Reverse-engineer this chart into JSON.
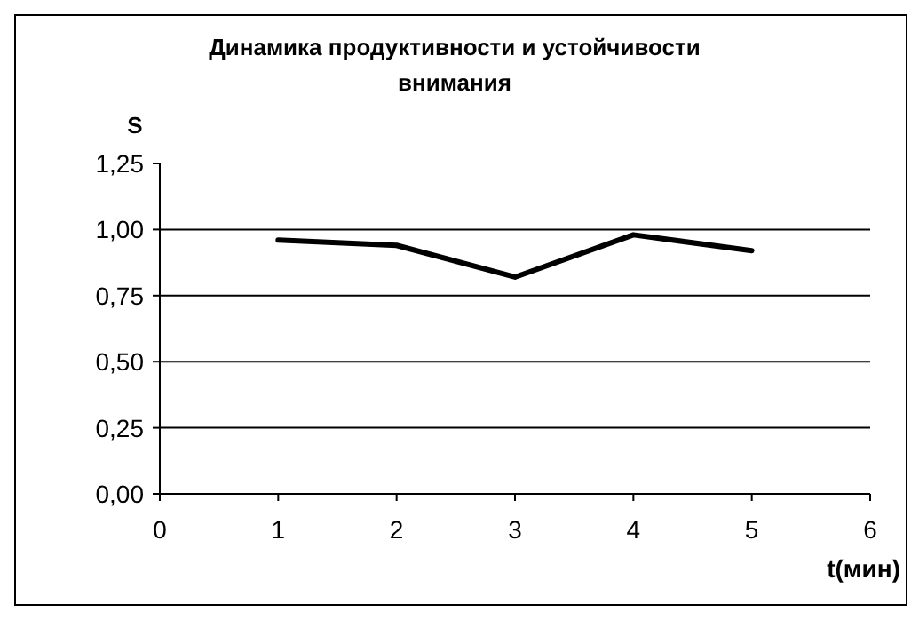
{
  "chart_data": {
    "type": "line",
    "title": "Динамика продуктивности и устойчивости внимания",
    "xlabel": "t(мин)",
    "ylabel": "S",
    "x": [
      1,
      2,
      3,
      4,
      5
    ],
    "series": [
      {
        "color": "#000000",
        "values": [
          0.96,
          0.94,
          0.82,
          0.98,
          0.92
        ]
      }
    ],
    "xlim": [
      0,
      6
    ],
    "xticks": [
      0,
      1,
      2,
      3,
      4,
      5,
      6
    ],
    "ylim": [
      0,
      1.25
    ],
    "yticks": [
      {
        "value": 0,
        "label": "0,00"
      },
      {
        "value": 0.25,
        "label": "0,25"
      },
      {
        "value": 0.5,
        "label": "0,50"
      },
      {
        "value": 0.75,
        "label": "0,75"
      },
      {
        "value": 1,
        "label": "1,00"
      },
      {
        "value": 1.25,
        "label": "1,25"
      }
    ],
    "grid": "y",
    "marker": "none",
    "line_style": "solid"
  }
}
